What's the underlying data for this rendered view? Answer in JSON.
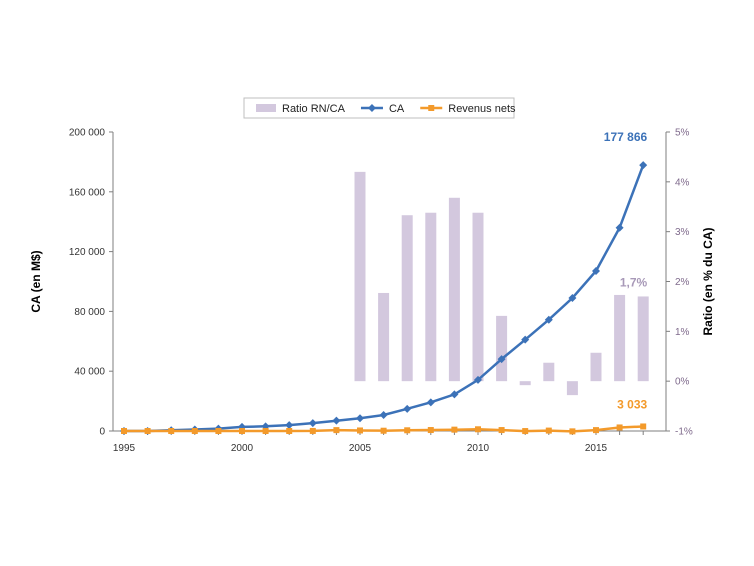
{
  "chart_data": {
    "type": "bar+line",
    "x": [
      1995,
      1996,
      1997,
      1998,
      1999,
      2000,
      2001,
      2002,
      2003,
      2004,
      2005,
      2006,
      2007,
      2008,
      2009,
      2010,
      2011,
      2012,
      2013,
      2014,
      2015,
      2016,
      2017
    ],
    "x_ticks": [
      "1995",
      "2000",
      "2005",
      "2010",
      "2015"
    ],
    "series": [
      {
        "name": "Ratio RN/CA",
        "kind": "bar",
        "axis": "right",
        "color": "#d3c8de",
        "x": [
          2005,
          2006,
          2007,
          2008,
          2009,
          2010,
          2011,
          2012,
          2013,
          2014,
          2015,
          2016,
          2017
        ],
        "values": [
          4.2,
          1.77,
          3.33,
          3.38,
          3.68,
          3.38,
          1.31,
          -0.08,
          0.37,
          -0.28,
          0.57,
          1.73,
          1.7
        ]
      },
      {
        "name": "CA",
        "kind": "line",
        "marker": "diamond",
        "axis": "left",
        "color": "#3c72b8",
        "values": [
          0,
          0,
          511,
          1000,
          1600,
          2762,
          3122,
          3933,
          5264,
          6921,
          8490,
          10711,
          14835,
          19166,
          24509,
          34204,
          48077,
          61093,
          74452,
          88988,
          107006,
          135987,
          177866
        ]
      },
      {
        "name": "Revenus nets",
        "kind": "line",
        "marker": "square",
        "axis": "left",
        "color": "#f39a2b",
        "values": [
          0,
          0,
          0,
          0,
          0,
          0,
          0,
          0,
          35,
          588,
          359,
          190,
          476,
          645,
          902,
          1152,
          631,
          -39,
          274,
          -241,
          596,
          2371,
          3033
        ]
      }
    ],
    "y_left": {
      "label": "CA (en M$)",
      "ylim": [
        0,
        200000
      ],
      "ticks": [
        "0",
        "40 000",
        "80 000",
        "120 000",
        "160 000",
        "200 000"
      ]
    },
    "y_right": {
      "label": "Ratio (en % du CA)",
      "ylim": [
        -1,
        5
      ],
      "ticks": [
        "-1%",
        "0%",
        "1%",
        "2%",
        "3%",
        "4%",
        "5%"
      ]
    },
    "annotations": [
      {
        "text": "177 866",
        "series": "CA",
        "color": "#3c72b8"
      },
      {
        "text": "1,7%",
        "series": "Ratio RN/CA",
        "color": "#a899b8"
      },
      {
        "text": "3 033",
        "series": "Revenus nets",
        "color": "#f39a2b"
      }
    ],
    "legend": {
      "position": "top",
      "entries": [
        "Ratio RN/CA",
        "CA",
        "Revenus nets"
      ]
    },
    "grid": false
  }
}
